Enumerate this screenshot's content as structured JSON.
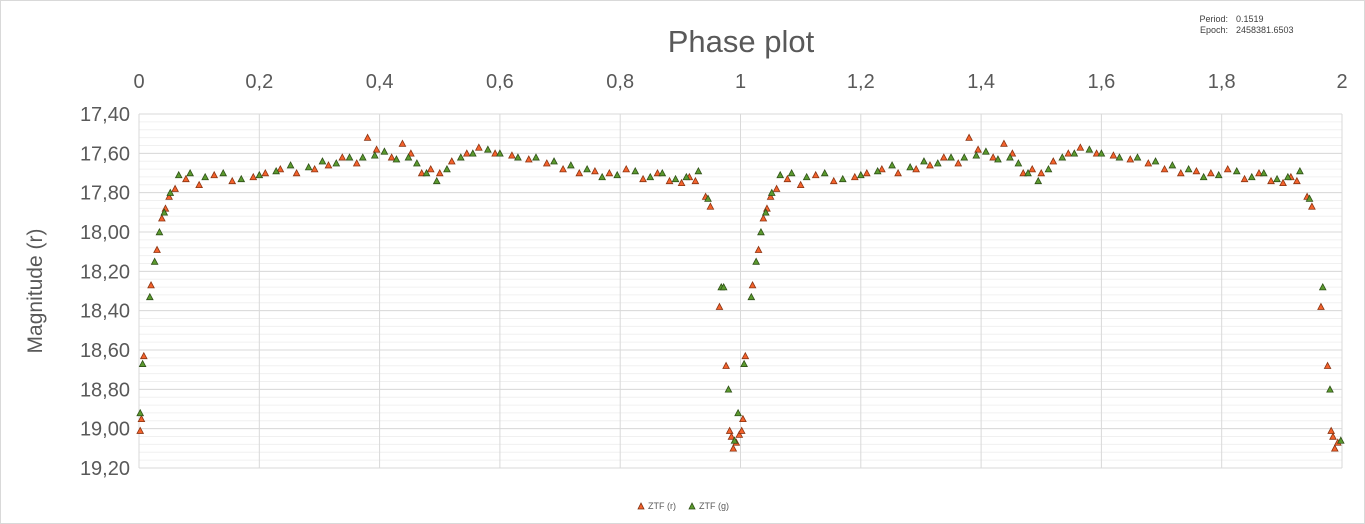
{
  "chart_data": {
    "type": "scatter",
    "title": "Phase plot",
    "ylabel": "Magnitude (r)",
    "xlabel": "",
    "xlim": [
      0,
      2
    ],
    "ylim": [
      17.4,
      19.2
    ],
    "y_inverted": true,
    "x_axis_position": "top",
    "grid": true,
    "legend_position": "bottom-center",
    "x_ticks": [
      "0",
      "0,2",
      "0,4",
      "0,6",
      "0,8",
      "1",
      "1,2",
      "1,4",
      "1,6",
      "1,8",
      "2"
    ],
    "y_ticks": [
      "17,40",
      "17,60",
      "17,80",
      "18,00",
      "18,20",
      "18,40",
      "18,60",
      "18,80",
      "19,00",
      "19,20"
    ],
    "info": {
      "period_label": "Period:",
      "period_value": "0.1519",
      "epoch_label": "Epoch:",
      "epoch_value": "2458381.6503"
    },
    "series": [
      {
        "name": "ZTF (r)",
        "color": "#f4622c",
        "points": [
          [
            0.002,
            19.01
          ],
          [
            0.004,
            18.95
          ],
          [
            0.008,
            18.63
          ],
          [
            0.02,
            18.27
          ],
          [
            0.03,
            18.09
          ],
          [
            0.038,
            17.93
          ],
          [
            0.044,
            17.88
          ],
          [
            0.05,
            17.82
          ],
          [
            0.06,
            17.78
          ],
          [
            0.078,
            17.73
          ],
          [
            0.1,
            17.76
          ],
          [
            0.125,
            17.71
          ],
          [
            0.155,
            17.74
          ],
          [
            0.19,
            17.72
          ],
          [
            0.21,
            17.7
          ],
          [
            0.235,
            17.68
          ],
          [
            0.262,
            17.7
          ],
          [
            0.292,
            17.68
          ],
          [
            0.315,
            17.66
          ],
          [
            0.338,
            17.62
          ],
          [
            0.362,
            17.65
          ],
          [
            0.38,
            17.52
          ],
          [
            0.395,
            17.58
          ],
          [
            0.42,
            17.62
          ],
          [
            0.438,
            17.55
          ],
          [
            0.452,
            17.6
          ],
          [
            0.47,
            17.7
          ],
          [
            0.485,
            17.68
          ],
          [
            0.5,
            17.7
          ],
          [
            0.52,
            17.64
          ],
          [
            0.545,
            17.6
          ],
          [
            0.565,
            17.57
          ],
          [
            0.592,
            17.6
          ],
          [
            0.62,
            17.61
          ],
          [
            0.648,
            17.63
          ],
          [
            0.678,
            17.65
          ],
          [
            0.705,
            17.68
          ],
          [
            0.732,
            17.7
          ],
          [
            0.758,
            17.69
          ],
          [
            0.782,
            17.7
          ],
          [
            0.81,
            17.68
          ],
          [
            0.838,
            17.73
          ],
          [
            0.862,
            17.7
          ],
          [
            0.882,
            17.74
          ],
          [
            0.902,
            17.75
          ],
          [
            0.915,
            17.72
          ],
          [
            0.925,
            17.74
          ],
          [
            0.942,
            17.82
          ],
          [
            0.95,
            17.87
          ],
          [
            0.965,
            18.38
          ],
          [
            0.976,
            18.68
          ],
          [
            0.982,
            19.01
          ],
          [
            0.985,
            19.04
          ],
          [
            0.988,
            19.1
          ],
          [
            0.993,
            19.07
          ],
          [
            0.998,
            19.03
          ],
          [
            1.002,
            19.01
          ],
          [
            1.004,
            18.95
          ],
          [
            1.008,
            18.63
          ],
          [
            1.02,
            18.27
          ],
          [
            1.03,
            18.09
          ],
          [
            1.038,
            17.93
          ],
          [
            1.044,
            17.88
          ],
          [
            1.05,
            17.82
          ],
          [
            1.06,
            17.78
          ],
          [
            1.078,
            17.73
          ],
          [
            1.1,
            17.76
          ],
          [
            1.125,
            17.71
          ],
          [
            1.155,
            17.74
          ],
          [
            1.19,
            17.72
          ],
          [
            1.21,
            17.7
          ],
          [
            1.235,
            17.68
          ],
          [
            1.262,
            17.7
          ],
          [
            1.292,
            17.68
          ],
          [
            1.315,
            17.66
          ],
          [
            1.338,
            17.62
          ],
          [
            1.362,
            17.65
          ],
          [
            1.38,
            17.52
          ],
          [
            1.395,
            17.58
          ],
          [
            1.42,
            17.62
          ],
          [
            1.438,
            17.55
          ],
          [
            1.452,
            17.6
          ],
          [
            1.47,
            17.7
          ],
          [
            1.485,
            17.68
          ],
          [
            1.5,
            17.7
          ],
          [
            1.52,
            17.64
          ],
          [
            1.545,
            17.6
          ],
          [
            1.565,
            17.57
          ],
          [
            1.592,
            17.6
          ],
          [
            1.62,
            17.61
          ],
          [
            1.648,
            17.63
          ],
          [
            1.678,
            17.65
          ],
          [
            1.705,
            17.68
          ],
          [
            1.732,
            17.7
          ],
          [
            1.758,
            17.69
          ],
          [
            1.782,
            17.7
          ],
          [
            1.81,
            17.68
          ],
          [
            1.838,
            17.73
          ],
          [
            1.862,
            17.7
          ],
          [
            1.882,
            17.74
          ],
          [
            1.902,
            17.75
          ],
          [
            1.915,
            17.72
          ],
          [
            1.925,
            17.74
          ],
          [
            1.942,
            17.82
          ],
          [
            1.95,
            17.87
          ],
          [
            1.965,
            18.38
          ],
          [
            1.976,
            18.68
          ],
          [
            1.982,
            19.01
          ],
          [
            1.985,
            19.04
          ],
          [
            1.988,
            19.1
          ],
          [
            1.993,
            19.07
          ]
        ]
      },
      {
        "name": "ZTF (g)",
        "color": "#5b9a2e",
        "points": [
          [
            0.002,
            18.92
          ],
          [
            0.006,
            18.67
          ],
          [
            0.018,
            18.33
          ],
          [
            0.026,
            18.15
          ],
          [
            0.034,
            18.0
          ],
          [
            0.042,
            17.9
          ],
          [
            0.052,
            17.8
          ],
          [
            0.066,
            17.71
          ],
          [
            0.085,
            17.7
          ],
          [
            0.11,
            17.72
          ],
          [
            0.14,
            17.7
          ],
          [
            0.17,
            17.73
          ],
          [
            0.2,
            17.71
          ],
          [
            0.228,
            17.69
          ],
          [
            0.252,
            17.66
          ],
          [
            0.282,
            17.67
          ],
          [
            0.305,
            17.64
          ],
          [
            0.328,
            17.65
          ],
          [
            0.35,
            17.62
          ],
          [
            0.372,
            17.62
          ],
          [
            0.392,
            17.61
          ],
          [
            0.408,
            17.59
          ],
          [
            0.428,
            17.63
          ],
          [
            0.448,
            17.62
          ],
          [
            0.462,
            17.65
          ],
          [
            0.478,
            17.7
          ],
          [
            0.495,
            17.74
          ],
          [
            0.512,
            17.68
          ],
          [
            0.535,
            17.62
          ],
          [
            0.555,
            17.6
          ],
          [
            0.58,
            17.58
          ],
          [
            0.6,
            17.6
          ],
          [
            0.63,
            17.62
          ],
          [
            0.66,
            17.62
          ],
          [
            0.69,
            17.64
          ],
          [
            0.718,
            17.66
          ],
          [
            0.745,
            17.68
          ],
          [
            0.77,
            17.72
          ],
          [
            0.795,
            17.71
          ],
          [
            0.825,
            17.69
          ],
          [
            0.85,
            17.72
          ],
          [
            0.87,
            17.7
          ],
          [
            0.892,
            17.73
          ],
          [
            0.91,
            17.72
          ],
          [
            0.93,
            17.69
          ],
          [
            0.946,
            17.83
          ],
          [
            0.968,
            18.28
          ],
          [
            0.972,
            18.28
          ],
          [
            0.98,
            18.8
          ],
          [
            0.99,
            19.06
          ],
          [
            0.996,
            18.92
          ],
          [
            1.006,
            18.67
          ],
          [
            1.018,
            18.33
          ],
          [
            1.026,
            18.15
          ],
          [
            1.034,
            18.0
          ],
          [
            1.042,
            17.9
          ],
          [
            1.052,
            17.8
          ],
          [
            1.066,
            17.71
          ],
          [
            1.085,
            17.7
          ],
          [
            1.11,
            17.72
          ],
          [
            1.14,
            17.7
          ],
          [
            1.17,
            17.73
          ],
          [
            1.2,
            17.71
          ],
          [
            1.228,
            17.69
          ],
          [
            1.252,
            17.66
          ],
          [
            1.282,
            17.67
          ],
          [
            1.305,
            17.64
          ],
          [
            1.328,
            17.65
          ],
          [
            1.35,
            17.62
          ],
          [
            1.372,
            17.62
          ],
          [
            1.392,
            17.61
          ],
          [
            1.408,
            17.59
          ],
          [
            1.428,
            17.63
          ],
          [
            1.448,
            17.62
          ],
          [
            1.462,
            17.65
          ],
          [
            1.478,
            17.7
          ],
          [
            1.495,
            17.74
          ],
          [
            1.512,
            17.68
          ],
          [
            1.535,
            17.62
          ],
          [
            1.555,
            17.6
          ],
          [
            1.58,
            17.58
          ],
          [
            1.6,
            17.6
          ],
          [
            1.63,
            17.62
          ],
          [
            1.66,
            17.62
          ],
          [
            1.69,
            17.64
          ],
          [
            1.718,
            17.66
          ],
          [
            1.745,
            17.68
          ],
          [
            1.77,
            17.72
          ],
          [
            1.795,
            17.71
          ],
          [
            1.825,
            17.69
          ],
          [
            1.85,
            17.72
          ],
          [
            1.87,
            17.7
          ],
          [
            1.892,
            17.73
          ],
          [
            1.91,
            17.72
          ],
          [
            1.93,
            17.69
          ],
          [
            1.946,
            17.83
          ],
          [
            1.968,
            18.28
          ],
          [
            1.98,
            18.8
          ],
          [
            1.998,
            19.06
          ]
        ]
      }
    ]
  }
}
